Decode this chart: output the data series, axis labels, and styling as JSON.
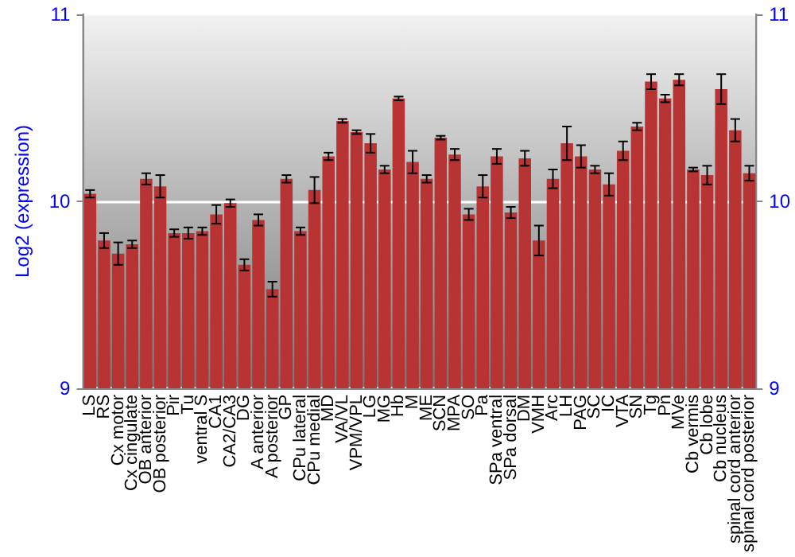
{
  "chart_data": {
    "type": "bar",
    "ylabel": "Log2 (expression)",
    "categories": [
      "LS",
      "RS",
      "Cx motor",
      "Cx cingulate",
      "OB anterior",
      "OB posterior",
      "Pir",
      "Tu",
      "ventral S",
      "CA1",
      "CA2/CA3",
      "DG",
      "A anterior",
      "A posterior",
      "GP",
      "CPu lateral",
      "CPu medial",
      "MD",
      "VA/VL",
      "VPM/VPL",
      "LG",
      "MG",
      "Hb",
      "M",
      "ME",
      "SCN",
      "MPA",
      "SO",
      "Pa",
      "SPa ventral",
      "SPa dorsal",
      "DM",
      "VMH",
      "Arc",
      "LH",
      "PAG",
      "SC",
      "IC",
      "VTA",
      "SN",
      "Tg",
      "Pn",
      "MVe",
      "Cb vermis",
      "Cb lobe",
      "Cb nucleus",
      "spinal cord anterior",
      "spinal cord posterior"
    ],
    "values": [
      10.04,
      9.79,
      9.72,
      9.77,
      10.12,
      10.08,
      9.83,
      9.83,
      9.84,
      9.93,
      9.99,
      9.66,
      9.9,
      9.53,
      10.12,
      9.84,
      10.06,
      10.24,
      10.43,
      10.37,
      10.31,
      10.17,
      10.55,
      10.21,
      10.12,
      10.34,
      10.25,
      9.93,
      10.08,
      10.24,
      9.94,
      10.23,
      9.79,
      10.12,
      10.31,
      10.24,
      10.17,
      10.09,
      10.27,
      10.4,
      10.64,
      10.55,
      10.65,
      10.17,
      10.14,
      10.6,
      10.38,
      10.15
    ],
    "errors": [
      0.02,
      0.04,
      0.06,
      0.02,
      0.03,
      0.06,
      0.02,
      0.03,
      0.02,
      0.05,
      0.02,
      0.03,
      0.03,
      0.04,
      0.02,
      0.02,
      0.07,
      0.02,
      0.01,
      0.01,
      0.05,
      0.02,
      0.01,
      0.06,
      0.02,
      0.01,
      0.03,
      0.03,
      0.06,
      0.04,
      0.03,
      0.04,
      0.08,
      0.05,
      0.09,
      0.06,
      0.02,
      0.06,
      0.05,
      0.02,
      0.04,
      0.02,
      0.03,
      0.01,
      0.05,
      0.08,
      0.06,
      0.04
    ],
    "color": "#b83333",
    "ylim": [
      9,
      11
    ],
    "yticks": [
      9,
      10,
      11
    ],
    "y2lim": [
      9,
      11
    ],
    "y2ticks": [
      9,
      10,
      11
    ],
    "grid": "y"
  }
}
